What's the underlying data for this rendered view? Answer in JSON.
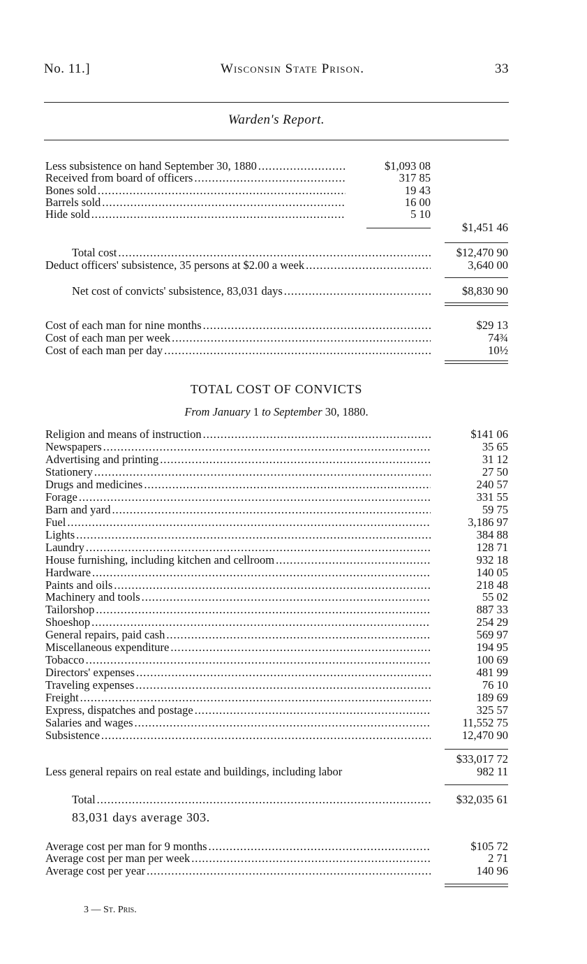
{
  "header": {
    "left": "No. 11.]",
    "center": "Wisconsin State Prison.",
    "page_number": "33"
  },
  "section_title": "Warden's Report.",
  "subsistence": {
    "items": [
      {
        "label": "Less subsistence on hand September 30, 1880",
        "amount": "$1,093 08"
      },
      {
        "label": "Received from board of officers",
        "amount": "317 85"
      },
      {
        "label": "Bones sold",
        "amount": "19 43"
      },
      {
        "label": "Barrels sold",
        "amount": "16 00"
      },
      {
        "label": "Hide sold",
        "amount": "5 10"
      }
    ],
    "subtotal": "$1,451 46",
    "total_cost": {
      "label": "Total cost",
      "amount": "$12,470 90"
    },
    "deduct": {
      "label": "Deduct officers' subsistence, 35 persons at $2.00 a week",
      "amount": "3,640 00"
    },
    "net": {
      "label": "Net cost of convicts' subsistence, 83,031 days",
      "amount": "$8,830 90"
    },
    "per_man": [
      {
        "label": "Cost of each man for nine months",
        "amount": "$29 13"
      },
      {
        "label": "Cost of each man per week",
        "amount": "74¾"
      },
      {
        "label": "Cost of each man per day",
        "amount": "10½"
      }
    ]
  },
  "total_cost_section": {
    "title": "TOTAL COST OF CONVICTS",
    "subtitle_italic_a": "From January",
    "subtitle_num_a": "1",
    "subtitle_italic_b": "to September",
    "subtitle_num_b": "30, 1880.",
    "items": [
      {
        "label": "Religion and means of instruction",
        "amount": "$141 06"
      },
      {
        "label": "Newspapers",
        "amount": "35 65"
      },
      {
        "label": "Advertising and printing",
        "amount": "31 12"
      },
      {
        "label": "Stationery",
        "amount": "27 50"
      },
      {
        "label": "Drugs and medicines",
        "amount": "240 57"
      },
      {
        "label": "Forage",
        "amount": "331 55"
      },
      {
        "label": "Barn and yard",
        "amount": "59 75"
      },
      {
        "label": "Fuel",
        "amount": "3,186 97"
      },
      {
        "label": "Lights",
        "amount": "384 88"
      },
      {
        "label": "Laundry",
        "amount": "128 71"
      },
      {
        "label": "House furnishing, including kitchen and cellroom",
        "amount": "932 18"
      },
      {
        "label": "Hardware",
        "amount": "140 05"
      },
      {
        "label": "Paints and oils",
        "amount": "218 48"
      },
      {
        "label": "Machinery and tools",
        "amount": "55 02"
      },
      {
        "label": "Tailorshop",
        "amount": "887 33"
      },
      {
        "label": "Shoeshop",
        "amount": "254 29"
      },
      {
        "label": "General repairs, paid cash",
        "amount": "569 97"
      },
      {
        "label": "Miscellaneous expenditure",
        "amount": "194 95"
      },
      {
        "label": "Tobacco",
        "amount": "100 69"
      },
      {
        "label": "Directors' expenses",
        "amount": "481 99"
      },
      {
        "label": "Traveling expenses",
        "amount": "76 10"
      },
      {
        "label": "Freight",
        "amount": "189 69"
      },
      {
        "label": "Express, dispatches and postage",
        "amount": "325 57"
      },
      {
        "label": "Salaries and wages",
        "amount": "11,552 75"
      },
      {
        "label": "Subsistence",
        "amount": "12,470 90"
      }
    ],
    "sum": "$33,017 72",
    "less": {
      "label": "Less general repairs on real estate and buildings, including labor",
      "amount": "982 11"
    },
    "total": {
      "label": "Total",
      "amount": "$32,035 61"
    },
    "days_note": "83,031 days average 303.",
    "averages": [
      {
        "label": "Average cost per man for 9 months",
        "amount": "$105 72"
      },
      {
        "label": "Average cost per man per week",
        "amount": "2 71"
      },
      {
        "label": "Average cost per year",
        "amount": "140 96"
      }
    ]
  },
  "footer_signature": "3 — St. Pris."
}
